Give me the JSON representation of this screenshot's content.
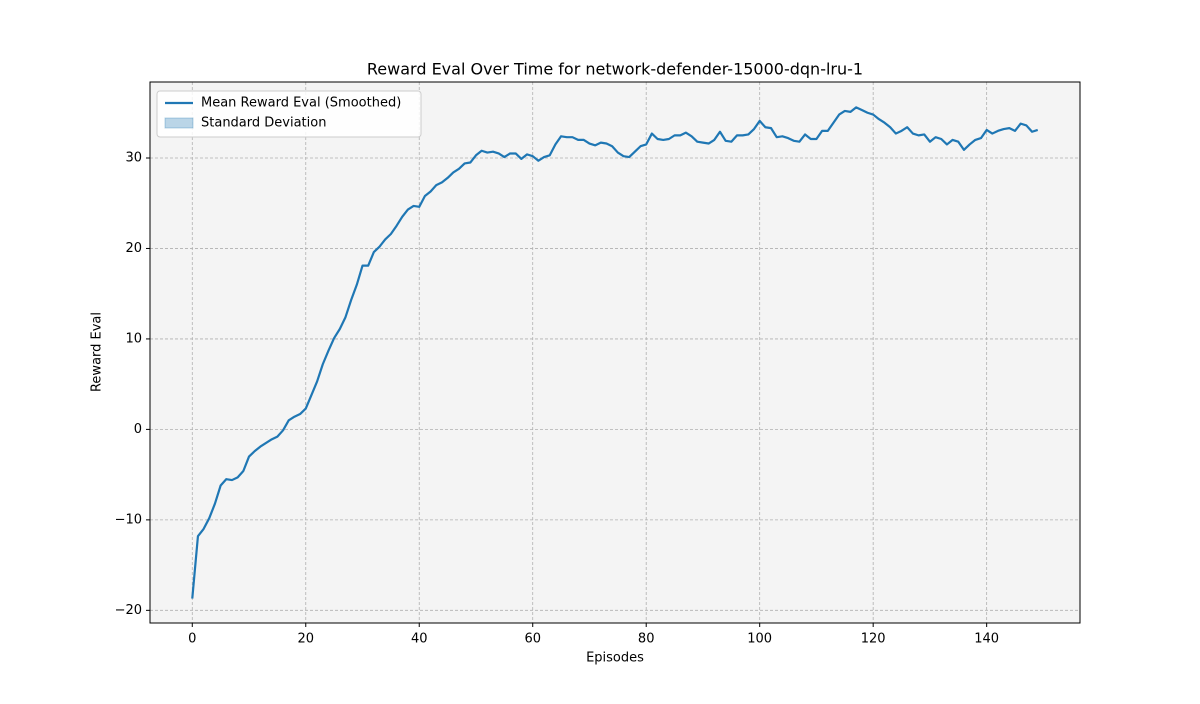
{
  "chart_data": {
    "type": "line",
    "title": "Reward Eval Over Time for network-defender-15000-dqn-lru-1",
    "x_label": "Episodes",
    "y_label": "Reward Eval",
    "x": [
      0,
      1,
      2,
      3,
      4,
      5,
      6,
      7,
      8,
      9,
      10,
      11,
      12,
      13,
      14,
      15,
      16,
      17,
      18,
      19,
      20,
      21,
      22,
      23,
      24,
      25,
      26,
      27,
      28,
      29,
      30,
      31,
      32,
      33,
      34,
      35,
      36,
      37,
      38,
      39,
      40,
      41,
      42,
      43,
      44,
      45,
      46,
      47,
      48,
      49,
      50,
      51,
      52,
      53,
      54,
      55,
      56,
      57,
      58,
      59,
      60,
      61,
      62,
      63,
      64,
      65,
      66,
      67,
      68,
      69,
      70,
      71,
      72,
      73,
      74,
      75,
      76,
      77,
      78,
      79,
      80,
      81,
      82,
      83,
      84,
      85,
      86,
      87,
      88,
      89,
      90,
      91,
      92,
      93,
      94,
      95,
      96,
      97,
      98,
      99,
      100,
      101,
      102,
      103,
      104,
      105,
      106,
      107,
      108,
      109,
      110,
      111,
      112,
      113,
      114,
      115,
      116,
      117,
      118,
      119,
      120,
      121,
      122,
      123,
      124,
      125,
      126,
      127,
      128,
      129,
      130,
      131,
      132,
      133,
      134,
      135,
      136,
      137,
      138,
      139,
      140,
      141,
      142,
      143,
      144,
      145,
      146,
      147,
      148,
      149
    ],
    "series": [
      {
        "name": "Mean Reward Eval (Smoothed)",
        "color": "#1f77b4",
        "values": [
          -18.7,
          -11.8,
          -11.0,
          -9.8,
          -8.2,
          -6.2,
          -5.5,
          -5.6,
          -5.3,
          -4.6,
          -3.0,
          -2.4,
          -1.9,
          -1.5,
          -1.1,
          -0.8,
          -0.1,
          1.0,
          1.4,
          1.7,
          2.3,
          3.8,
          5.3,
          7.2,
          8.7,
          10.1,
          11.1,
          12.4,
          14.3,
          16.0,
          18.1,
          18.1,
          19.6,
          20.2,
          21.0,
          21.6,
          22.5,
          23.5,
          24.3,
          24.7,
          24.6,
          25.8,
          26.3,
          27.0,
          27.3,
          27.8,
          28.4,
          28.8,
          29.4,
          29.5,
          30.3,
          30.8,
          30.6,
          30.7,
          30.5,
          30.1,
          30.5,
          30.5,
          29.9,
          30.4,
          30.2,
          29.7,
          30.1,
          30.3,
          31.5,
          32.4,
          32.3,
          32.3,
          32.0,
          32.0,
          31.6,
          31.4,
          31.7,
          31.6,
          31.3,
          30.6,
          30.2,
          30.1,
          30.7,
          31.3,
          31.5,
          32.7,
          32.1,
          32.0,
          32.1,
          32.5,
          32.5,
          32.8,
          32.4,
          31.8,
          31.7,
          31.6,
          32.0,
          32.9,
          31.9,
          31.8,
          32.5,
          32.5,
          32.6,
          33.2,
          34.1,
          33.4,
          33.3,
          32.3,
          32.4,
          32.2,
          31.9,
          31.8,
          32.6,
          32.1,
          32.1,
          33.0,
          33.0,
          33.9,
          34.8,
          35.2,
          35.1,
          35.6,
          35.3,
          35.0,
          34.8,
          34.3,
          33.9,
          33.4,
          32.7,
          33.0,
          33.4,
          32.7,
          32.5,
          32.6,
          31.8,
          32.3,
          32.1,
          31.5,
          32.0,
          31.8,
          30.9,
          31.5,
          32.0,
          32.2,
          33.1,
          32.7,
          33.0,
          33.2,
          33.3,
          33.0,
          33.8,
          33.6,
          32.9,
          33.1
        ]
      }
    ],
    "band": {
      "name": "Standard Deviation",
      "color": "#1f77b4"
    },
    "xlim": [
      -7.45,
      156.45
    ],
    "ylim": [
      -21.4,
      38.4
    ],
    "xticks": [
      0,
      20,
      40,
      60,
      80,
      100,
      120,
      140
    ],
    "yticks": [
      {
        "value": -20,
        "label": "−20"
      },
      {
        "value": -10,
        "label": "−10"
      },
      0,
      10,
      20,
      30
    ],
    "grid": true,
    "legend": "upper left"
  }
}
